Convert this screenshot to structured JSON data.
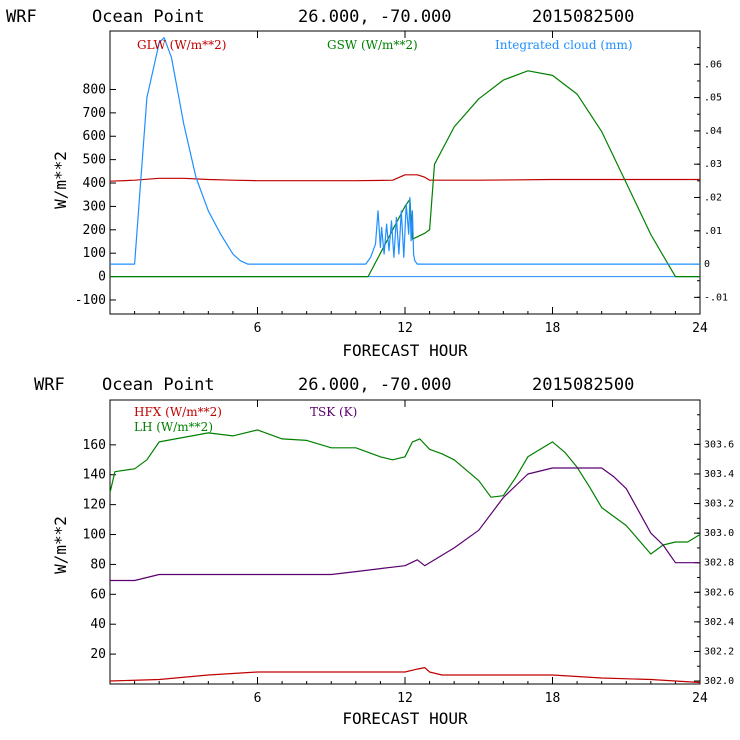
{
  "chart_data": [
    {
      "type": "line",
      "title_parts": [
        "WRF",
        "Ocean Point",
        "26.000, -70.000",
        "2015082500"
      ],
      "xlabel": "FORECAST HOUR",
      "ylabel": "W/m**2",
      "xlim": [
        0,
        24
      ],
      "ylim": [
        -160,
        1050
      ],
      "x_ticks": [
        6,
        12,
        18,
        24
      ],
      "y_ticks": [
        -100,
        0,
        100,
        200,
        300,
        400,
        500,
        600,
        700,
        800
      ],
      "y2lim": [
        -0.015,
        0.07
      ],
      "y2_ticks": [
        -0.01,
        0,
        0.01,
        0.02,
        0.03,
        0.04,
        0.05,
        0.06
      ],
      "y2_tick_labels": [
        "-.01",
        "0",
        ".01",
        ".02",
        ".03",
        ".04",
        ".05",
        ".06"
      ],
      "series": [
        {
          "name": "GLW (W/m**2)",
          "color": "#c00000",
          "axis": "left",
          "x": [
            0,
            1,
            2,
            3,
            4,
            5,
            6,
            8,
            10,
            11.5,
            12,
            12.5,
            12.8,
            13,
            15,
            18,
            21,
            24
          ],
          "y": [
            408,
            412,
            420,
            420,
            415,
            412,
            410,
            410,
            410,
            412,
            435,
            435,
            425,
            412,
            412,
            415,
            415,
            415
          ]
        },
        {
          "name": "GSW (W/m**2)",
          "color": "#008000",
          "axis": "left",
          "x": [
            0,
            10.5,
            11,
            11.5,
            12,
            12.2,
            12.3,
            12.5,
            12.8,
            13,
            13.2,
            14,
            15,
            16,
            17,
            18,
            19,
            20,
            21,
            22,
            23,
            24
          ],
          "y": [
            0,
            0,
            100,
            200,
            300,
            330,
            160,
            170,
            185,
            200,
            480,
            640,
            760,
            840,
            880,
            860,
            780,
            620,
            400,
            180,
            0,
            0
          ]
        },
        {
          "name": "Integrated cloud (mm)",
          "color": "#1f8fff",
          "axis": "right",
          "x": [
            0,
            1,
            1.2,
            1.5,
            2,
            2.2,
            2.5,
            3,
            3.5,
            4,
            4.5,
            5,
            5.3,
            5.6,
            6,
            10.4,
            10.6,
            10.8,
            10.9,
            11,
            11.05,
            11.15,
            11.25,
            11.35,
            11.45,
            11.55,
            11.65,
            11.75,
            11.85,
            11.95,
            12.05,
            12.15,
            12.2,
            12.25,
            12.3,
            12.35,
            12.4,
            12.5,
            13,
            24
          ],
          "y": [
            0,
            0,
            0.02,
            0.05,
            0.0665,
            0.068,
            0.062,
            0.042,
            0.026,
            0.016,
            0.009,
            0.003,
            0.001,
            0,
            0,
            0,
            0.002,
            0.006,
            0.016,
            0.005,
            0.011,
            0.003,
            0.012,
            0.004,
            0.013,
            0.002,
            0.014,
            0.003,
            0.016,
            0.002,
            0.018,
            0.009,
            0.02,
            0.007,
            0.016,
            0.003,
            0.001,
            0,
            0,
            0
          ]
        }
      ]
    },
    {
      "type": "line",
      "title_parts": [
        "WRF",
        "Ocean Point",
        "26.000, -70.000",
        "2015082500"
      ],
      "xlabel": "FORECAST HOUR",
      "ylabel": "W/m**2",
      "xlim": [
        0,
        24
      ],
      "ylim": [
        0,
        190
      ],
      "x_ticks": [
        6,
        12,
        18,
        24
      ],
      "y_ticks": [
        20,
        40,
        60,
        80,
        100,
        120,
        140,
        160
      ],
      "y2lim": [
        301.98,
        303.9
      ],
      "y2_ticks": [
        302.0,
        302.2,
        302.4,
        302.6,
        302.8,
        303.0,
        303.2,
        303.4,
        303.6
      ],
      "y2_tick_labels": [
        "302.0",
        "302.2",
        "302.4",
        "302.6",
        "302.8",
        "303.0",
        "303.2",
        "303.4",
        "303.6"
      ],
      "series": [
        {
          "name": "HFX (W/m**2)",
          "color": "#c00000",
          "axis": "left",
          "x": [
            0,
            2,
            4,
            6,
            8,
            10,
            11.5,
            12,
            12.5,
            12.8,
            13,
            13.5,
            15,
            17,
            18,
            20,
            22,
            24
          ],
          "y": [
            2,
            3,
            6,
            8,
            8,
            8,
            8,
            8,
            10,
            11,
            8,
            6,
            6,
            6,
            6,
            4,
            3,
            1
          ]
        },
        {
          "name": "LH  (W/m**2)",
          "color": "#008000",
          "axis": "left",
          "x": [
            0,
            0.2,
            1,
            1.5,
            2,
            3,
            4,
            5,
            6,
            7,
            8,
            9,
            10,
            11,
            11.5,
            12,
            12.3,
            12.6,
            13,
            13.5,
            14,
            15,
            15.5,
            16,
            16.5,
            17,
            17.5,
            18,
            18.5,
            19,
            19.5,
            20,
            21,
            22,
            22.5,
            23,
            23.5,
            24
          ],
          "y": [
            128,
            142,
            144,
            150,
            162,
            165,
            168,
            166,
            170,
            164,
            163,
            158,
            158,
            152,
            150,
            152,
            162,
            164,
            157,
            154,
            150,
            136,
            125,
            126,
            138,
            152,
            157,
            162,
            155,
            145,
            132,
            118,
            106,
            87,
            93,
            95,
            95,
            100
          ]
        },
        {
          "name": "TSK (K)",
          "color": "#5a0070",
          "axis": "right",
          "x": [
            0,
            1,
            2,
            3,
            4,
            6,
            8,
            9,
            10,
            11,
            12,
            12.5,
            12.8,
            13,
            14,
            15,
            16,
            17,
            18,
            19,
            20,
            20.5,
            21,
            22,
            22.5,
            23,
            24
          ],
          "y": [
            302.68,
            302.68,
            302.72,
            302.72,
            302.72,
            302.72,
            302.72,
            302.72,
            302.74,
            302.76,
            302.78,
            302.82,
            302.78,
            302.8,
            302.9,
            303.02,
            303.24,
            303.4,
            303.44,
            303.44,
            303.44,
            303.38,
            303.3,
            303.0,
            302.92,
            302.8,
            302.8
          ]
        }
      ]
    }
  ]
}
